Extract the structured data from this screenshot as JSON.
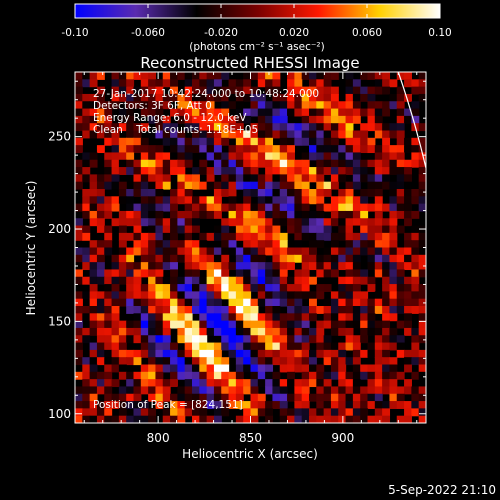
{
  "chart_data": {
    "type": "heatmap",
    "title": "Reconstructed RHESSI Image",
    "xlabel": "Heliocentric X (arcsec)",
    "ylabel": "Heliocentric Y (arcsec)",
    "xlim": [
      755,
      945
    ],
    "ylim": [
      95,
      285
    ],
    "xticks": [
      800,
      850,
      900
    ],
    "yticks": [
      100,
      150,
      200,
      250
    ],
    "colorbar": {
      "label": "(photons cm⁻² s⁻¹ asec⁻²)",
      "min": -0.1,
      "max": 0.1,
      "ticks": [
        "-0.10",
        "-0.060",
        "-0.020",
        "0.020",
        "0.060",
        "0.10"
      ],
      "colormap": [
        "#0000ff",
        "#5a2bb0",
        "#000000",
        "#7a0000",
        "#ff1800",
        "#ffd000",
        "#ffffff"
      ]
    },
    "annotations": [
      "27-Jan-2017 10:42:24.000 to 10:48:24.000",
      "Detectors: 3F 6F, Att 0",
      "Energy Range: 6.0 - 12.0 keV",
      "Clean    Total counts: 1.18E+05"
    ],
    "peak_label": "Position of Peak = [824,151]",
    "peak": [
      824,
      151
    ],
    "limb_arc": [
      [
        930,
        285
      ],
      [
        945,
        233
      ]
    ]
  },
  "footer": {
    "date": "5-Sep-2022 21:10"
  },
  "colors": {
    "background": "#000000",
    "text": "#ffffff"
  }
}
